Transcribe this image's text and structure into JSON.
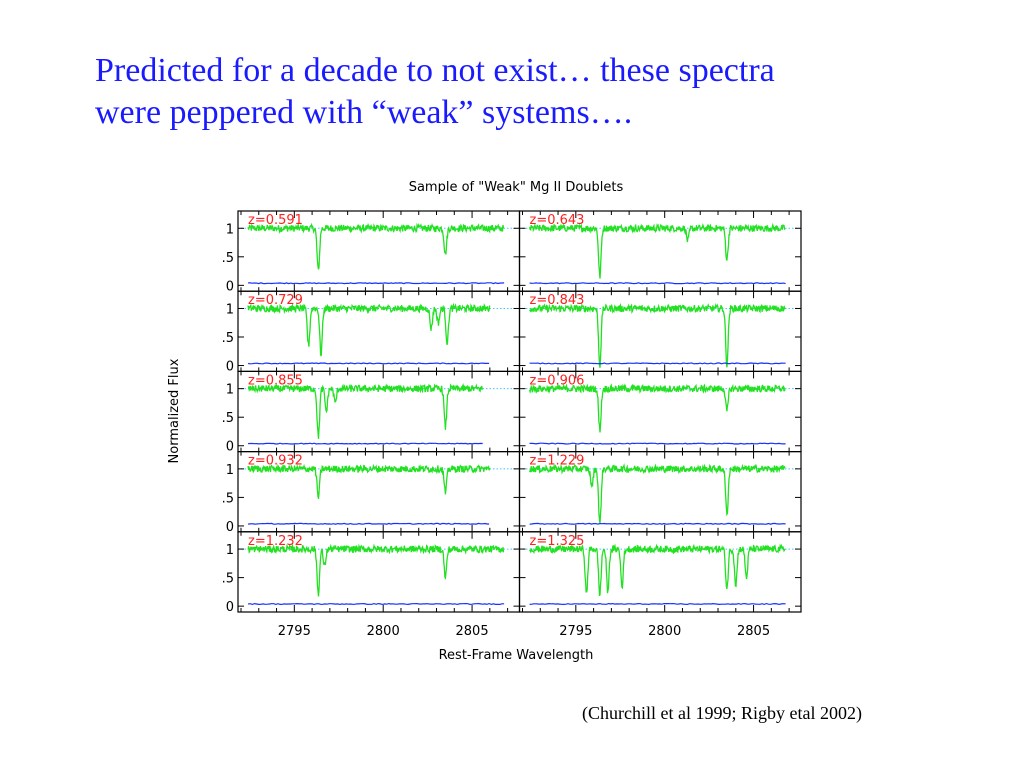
{
  "slide": {
    "title_line1": "Predicted for a decade to not exist… these spectra",
    "title_line2": "were peppered with “weak” systems….",
    "citation": "(Churchill et al 1999; Rigby etal 2002)",
    "title_color": "#1a1aff"
  },
  "chart_data": {
    "type": "line",
    "title": "Sample of \"Weak\" Mg II Doublets",
    "xlabel": "Rest-Frame Wavelength",
    "ylabel": "Normalized Flux",
    "xlim": [
      2792,
      2807.5
    ],
    "ylim": [
      -0.05,
      1.25
    ],
    "x_ticks": [
      2795,
      2800,
      2805
    ],
    "x_tick_labels": [
      "2795",
      "2800",
      "2805"
    ],
    "y_ticks": [
      0,
      0.5,
      1
    ],
    "y_tick_labels": [
      "0",
      ".5",
      "1"
    ],
    "continuum_level": 1.0,
    "zero_level": 0.0,
    "colors": {
      "flux": "#22e022",
      "error": "#1530ff",
      "label": "#ff2020",
      "guide": "#40c8ff",
      "axes": "#000000"
    },
    "grid": {
      "rows": 5,
      "cols": 2
    },
    "panels": [
      {
        "label": "z=0.591",
        "range": [
          2792.4,
          2806.8
        ],
        "lines": [
          [
            2796.35,
            0.75
          ],
          [
            2803.5,
            0.45
          ]
        ],
        "extra": []
      },
      {
        "label": "z=0.643",
        "range": [
          2792.4,
          2806.8
        ],
        "lines": [
          [
            2796.35,
            0.85
          ],
          [
            2803.5,
            0.55
          ]
        ],
        "extra": [
          [
            2801.3,
            0.22
          ]
        ]
      },
      {
        "label": "z=0.729",
        "range": [
          2792.4,
          2806.0
        ],
        "lines": [
          [
            2796.5,
            0.8
          ],
          [
            2803.6,
            0.6
          ]
        ],
        "extra": [
          [
            2795.8,
            0.65
          ],
          [
            2802.7,
            0.35
          ],
          [
            2803.1,
            0.25
          ]
        ]
      },
      {
        "label": "z=0.843",
        "range": [
          2792.4,
          2806.8
        ],
        "lines": [
          [
            2796.35,
            1.0
          ],
          [
            2803.5,
            0.98
          ]
        ],
        "extra": []
      },
      {
        "label": "z=0.855",
        "range": [
          2792.4,
          2805.6
        ],
        "lines": [
          [
            2796.35,
            0.85
          ],
          [
            2803.5,
            0.68
          ]
        ],
        "extra": [
          [
            2796.8,
            0.4
          ],
          [
            2797.3,
            0.25
          ]
        ]
      },
      {
        "label": "z=0.906",
        "range": [
          2792.4,
          2806.8
        ],
        "lines": [
          [
            2796.35,
            0.72
          ],
          [
            2803.5,
            0.4
          ]
        ],
        "extra": []
      },
      {
        "label": "z=0.932",
        "range": [
          2792.4,
          2806.0
        ],
        "lines": [
          [
            2796.35,
            0.5
          ],
          [
            2803.5,
            0.42
          ]
        ],
        "extra": []
      },
      {
        "label": "z=1.229",
        "range": [
          2792.4,
          2806.8
        ],
        "lines": [
          [
            2796.35,
            0.98
          ],
          [
            2803.5,
            0.8
          ]
        ],
        "extra": [
          [
            2795.9,
            0.3
          ]
        ]
      },
      {
        "label": "z=1.232",
        "range": [
          2792.4,
          2806.8
        ],
        "lines": [
          [
            2796.35,
            0.78
          ],
          [
            2803.5,
            0.5
          ]
        ],
        "extra": [
          [
            2796.7,
            0.3
          ]
        ]
      },
      {
        "label": "z=1.325",
        "range": [
          2792.4,
          2806.8
        ],
        "lines": [
          [
            2796.35,
            0.8
          ],
          [
            2803.5,
            0.7
          ]
        ],
        "extra": [
          [
            2795.6,
            0.8
          ],
          [
            2796.8,
            0.75
          ],
          [
            2797.6,
            0.65
          ],
          [
            2804.0,
            0.62
          ],
          [
            2804.6,
            0.5
          ]
        ]
      }
    ]
  }
}
